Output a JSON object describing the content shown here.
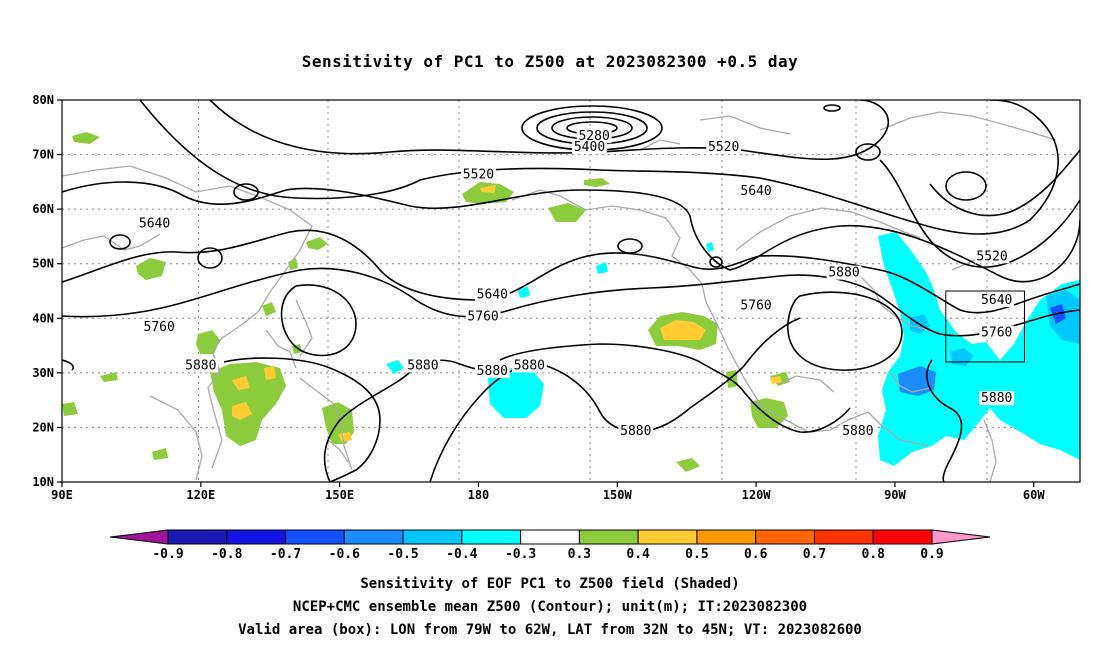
{
  "title": "Sensitivity of PC1 to Z500 at 2023082300 +0.5 day",
  "lat_ticks": [
    "80N",
    "70N",
    "60N",
    "50N",
    "40N",
    "30N",
    "20N",
    "10N"
  ],
  "lon_ticks": [
    "90E",
    "120E",
    "150E",
    "180",
    "150W",
    "120W",
    "90W",
    "60W"
  ],
  "contour_labels": [
    {
      "text": "5280",
      "lon": 205,
      "lat": 73
    },
    {
      "text": "5400",
      "lon": 204,
      "lat": 71
    },
    {
      "text": "5520",
      "lon": 180,
      "lat": 66
    },
    {
      "text": "5520",
      "lon": 233,
      "lat": 71
    },
    {
      "text": "5640",
      "lon": 110,
      "lat": 57
    },
    {
      "text": "5640",
      "lon": 240,
      "lat": 63
    },
    {
      "text": "5640",
      "lon": 183,
      "lat": 44
    },
    {
      "text": "5760",
      "lon": 111,
      "lat": 38
    },
    {
      "text": "5760",
      "lon": 181,
      "lat": 40
    },
    {
      "text": "5760",
      "lon": 240,
      "lat": 42
    },
    {
      "text": "5880",
      "lon": 120,
      "lat": 31
    },
    {
      "text": "5880",
      "lon": 168,
      "lat": 31
    },
    {
      "text": "5880",
      "lon": 183,
      "lat": 30
    },
    {
      "text": "5880",
      "lon": 191,
      "lat": 31
    },
    {
      "text": "5880",
      "lon": 214,
      "lat": 19
    },
    {
      "text": "5880",
      "lon": 259,
      "lat": 48
    },
    {
      "text": "5880",
      "lon": 262,
      "lat": 19
    },
    {
      "text": "5880",
      "lon": 292,
      "lat": 25
    },
    {
      "text": "5520",
      "lon": 291,
      "lat": 51
    },
    {
      "text": "5640",
      "lon": 292,
      "lat": 43
    },
    {
      "text": "5760",
      "lon": 292,
      "lat": 37
    }
  ],
  "valid_box": {
    "lon_min": -79,
    "lon_max": -62,
    "lat_min": 32,
    "lat_max": 45
  },
  "colorbar": {
    "labels": [
      "-0.9",
      "-0.8",
      "-0.7",
      "-0.6",
      "-0.5",
      "-0.4",
      "-0.3",
      "0.3",
      "0.4",
      "0.5",
      "0.6",
      "0.7",
      "0.8",
      "0.9"
    ],
    "colors": [
      "#a0149a",
      "#1a1ab8",
      "#1414e6",
      "#1450ff",
      "#1a8cff",
      "#00c8ff",
      "#00ffff",
      "#ffffff",
      "#8ccc3c",
      "#ffcc33",
      "#ff9900",
      "#ff6600",
      "#ff3300",
      "#ff0000",
      "#ff99cc"
    ]
  },
  "caption": [
    "Sensitivity of EOF PC1 to Z500 field (Shaded)",
    "NCEP+CMC ensemble mean Z500 (Contour); unit(m); IT:2023082300",
    "Valid area (box): LON from 79W to 62W, LAT from 32N to 45N; VT: 2023082600"
  ]
}
